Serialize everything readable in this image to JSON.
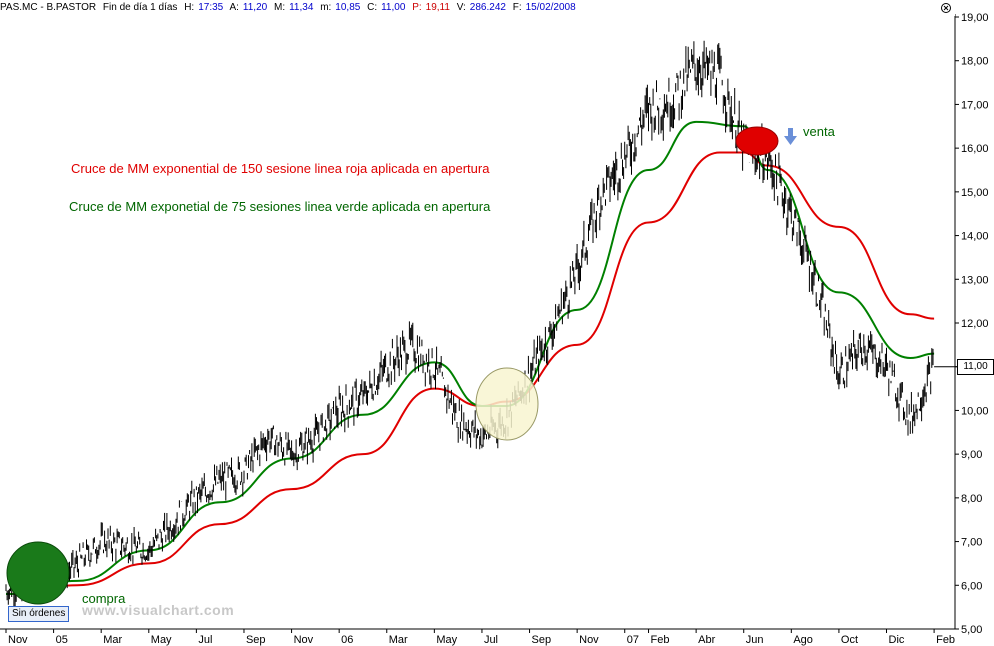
{
  "header": {
    "symbol": "PAS.MC - B.PASTOR",
    "period": "Fin de día 1 días",
    "time_label": "H:",
    "time_value": "17:35",
    "open_label": "A:",
    "open_value": "11,20",
    "high_label": "M:",
    "high_value": "11,34",
    "low_label": "m:",
    "low_value": "10,85",
    "close_label": "C:",
    "close_value": "11,00",
    "p_label": "P:",
    "p_value": "19,11",
    "vol_label": "V:",
    "vol_value": "286.242",
    "date_label": "F:",
    "date_value": "15/02/2008",
    "close_icon": "close-circle-icon"
  },
  "annotations": {
    "red_text": "Cruce de MM exponential de 150 sesione linea roja aplicada en apertura",
    "green_text": "Cruce de MM exponetial de 75 sesiones linea verde aplicada en apertura",
    "buy_text": "compra",
    "sell_text": "venta",
    "sell_icon": "arrow-down-icon"
  },
  "orders_badge": "Sin órdenes",
  "watermark": "www.visualchart.com",
  "last_price_label": "11,00",
  "colors": {
    "price": "#000000",
    "ema150": "#e00000",
    "ema75": "#008000",
    "buy_marker": "#1a7a1a",
    "sell_marker": "#e00000",
    "neutral_marker": "#f8f4d0",
    "sell_arrow": "#6a8fd8",
    "axis_text": "#000000",
    "header_value": "#0000cc"
  },
  "chart_data": {
    "type": "line",
    "title": "",
    "xlabel": "",
    "ylabel": "",
    "ylim": [
      5.0,
      19.0
    ],
    "grid": false,
    "y_ticks": [
      "5,00",
      "6,00",
      "7,00",
      "8,00",
      "9,00",
      "10,00",
      "11,00",
      "12,00",
      "13,00",
      "14,00",
      "15,00",
      "16,00",
      "17,00",
      "18,00",
      "19,00"
    ],
    "x_ticks": [
      "Nov",
      "05",
      "Mar",
      "May",
      "Jul",
      "Sep",
      "Nov",
      "06",
      "Mar",
      "May",
      "Jul",
      "Sep",
      "Nov",
      "07",
      "Feb",
      "Abr",
      "Jun",
      "Ago",
      "Oct",
      "Dic",
      "Feb"
    ],
    "series": [
      {
        "kind": "price",
        "x": [
          "Nov 2004",
          "Dic 2004",
          "Ene 2005",
          "Feb 2005",
          "Mar 2005",
          "Abr 2005",
          "May 2005",
          "Jun 2005",
          "Jul 2005",
          "Ago 2005",
          "Sep 2005",
          "Oct 2005",
          "Nov 2005",
          "Dic 2005",
          "Ene 2006",
          "Feb 2006",
          "Mar 2006",
          "Abr 2006",
          "May 2006",
          "Jun 2006",
          "Jul 2006",
          "Ago 2006",
          "Sep 2006",
          "Oct 2006",
          "Nov 2006",
          "Dic 2006",
          "Ene 2007",
          "Feb 2007",
          "Mar 2007",
          "Abr 2007",
          "May 2007",
          "Jun 2007",
          "Jul 2007",
          "Ago 2007",
          "Sep 2007",
          "Oct 2007",
          "Nov 2007",
          "Dic 2007",
          "Ene 2008",
          "Feb 2008"
        ],
        "values": [
          5.9,
          5.9,
          6.0,
          6.5,
          7.0,
          6.9,
          6.8,
          7.4,
          8.0,
          8.4,
          8.6,
          9.4,
          9.0,
          9.4,
          10.0,
          10.3,
          11.0,
          11.5,
          11.0,
          9.8,
          9.4,
          9.8,
          10.8,
          11.9,
          13.2,
          14.9,
          15.8,
          16.9,
          17.1,
          17.9,
          17.6,
          16.0,
          15.8,
          14.5,
          13.0,
          10.8,
          11.5,
          11.0,
          9.8,
          11.0
        ]
      },
      {
        "name": "Cruce de MM exponential de 150 sesione linea roja aplicada en apertura",
        "kind": "ema150",
        "x": [
          "Nov 2004",
          "Feb 2005",
          "May 2005",
          "Ago 2005",
          "Nov 2005",
          "Feb 2006",
          "May 2006",
          "Jul 2006",
          "Ago 2006",
          "Nov 2006",
          "Feb 2007",
          "May 2007",
          "Jun 2007",
          "Jul 2007",
          "Oct 2007",
          "Ene 2008",
          "Feb 2008"
        ],
        "values": [
          5.8,
          6.0,
          6.5,
          7.4,
          8.2,
          9.0,
          10.5,
          10.1,
          10.2,
          11.5,
          14.3,
          15.9,
          15.9,
          15.6,
          14.2,
          12.2,
          12.1
        ]
      },
      {
        "name": "Cruce de MM exponetial de 75 sesiones linea verde aplicada en apertura",
        "kind": "ema75",
        "x": [
          "Nov 2004",
          "Feb 2005",
          "May 2005",
          "Ago 2005",
          "Nov 2005",
          "Feb 2006",
          "May 2006",
          "Jul 2006",
          "Ago 2006",
          "Nov 2006",
          "Feb 2007",
          "Abr 2007",
          "Jun 2007",
          "Jul 2007",
          "Oct 2007",
          "Ene 2008",
          "Feb 2008"
        ],
        "values": [
          5.8,
          6.1,
          6.8,
          7.9,
          8.9,
          9.9,
          11.1,
          10.1,
          10.1,
          12.3,
          15.5,
          16.6,
          16.5,
          15.5,
          12.7,
          11.2,
          11.3
        ]
      }
    ]
  }
}
